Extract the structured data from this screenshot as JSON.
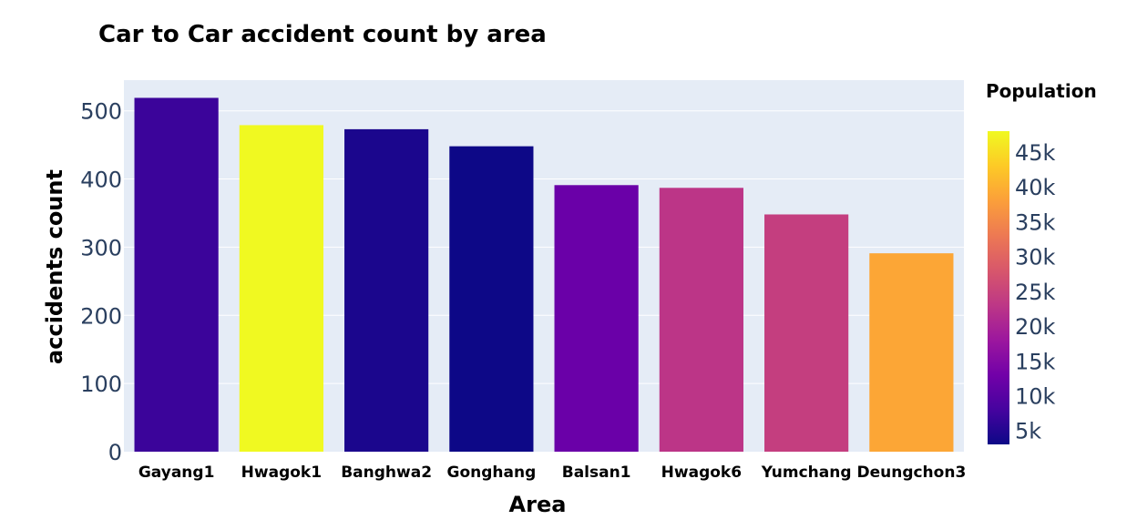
{
  "chart_data": {
    "type": "bar",
    "title": "Car to Car accident count by area",
    "xlabel": "Area",
    "ylabel": "accidents count",
    "categories": [
      "Gayang1",
      "Hwagok1",
      "Banghwa2",
      "Gonghang",
      "Balsan1",
      "Hwagok6",
      "Yumchang",
      "Deungchon3"
    ],
    "values": [
      519,
      479,
      473,
      448,
      391,
      387,
      348,
      291
    ],
    "color_values": [
      8000,
      47000,
      6000,
      3500,
      12000,
      19500,
      22000,
      38000
    ],
    "bar_colors": [
      "#3b049a",
      "#f0f921",
      "#1b068d",
      "#0d0887",
      "#6a00a8",
      "#bc3587",
      "#c43e7f",
      "#fca636"
    ],
    "ylim": [
      0,
      545
    ],
    "yticks": [
      0,
      100,
      200,
      300,
      400,
      500
    ],
    "ytick_labels": [
      "0",
      "100",
      "200",
      "300",
      "400",
      "500"
    ],
    "grid": true,
    "plot_bgcolor": "#e5ecf6",
    "colorbar": {
      "title": "Population",
      "colorscale": "Plasma",
      "range": [
        3000,
        48000
      ],
      "ticks": [
        5000,
        10000,
        15000,
        20000,
        25000,
        30000,
        35000,
        40000,
        45000
      ],
      "tick_labels": [
        "5k",
        "10k",
        "15k",
        "20k",
        "25k",
        "30k",
        "35k",
        "40k",
        "45k"
      ]
    }
  }
}
